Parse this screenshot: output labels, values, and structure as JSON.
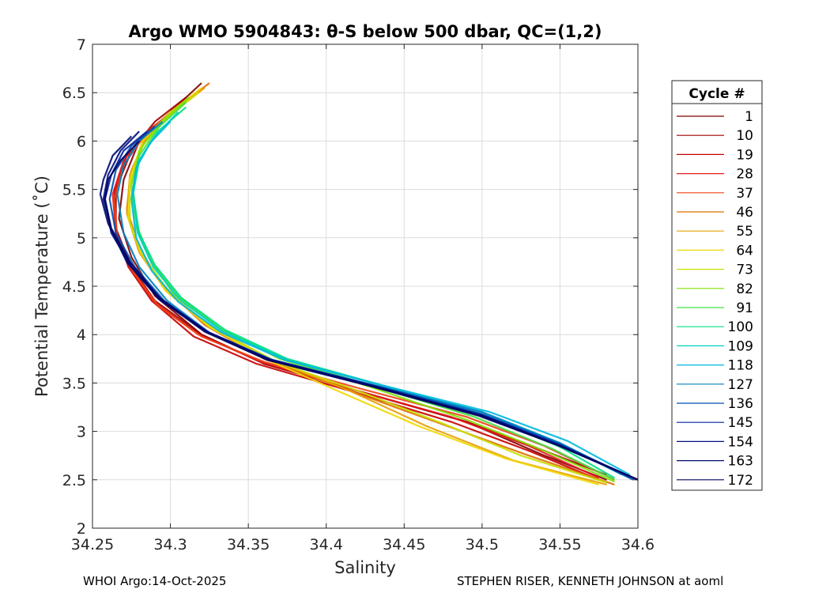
{
  "chart_data": {
    "type": "line",
    "title": "Argo WMO 5904843: θ-S below 500 dbar,  QC=(1,2)",
    "xlabel": "Salinity",
    "ylabel": "Potential Temperature (˚C)",
    "xlim": [
      34.25,
      34.6
    ],
    "ylim": [
      2,
      7
    ],
    "xticks": [
      "34.25",
      "34.3",
      "34.35",
      "34.4",
      "34.45",
      "34.5",
      "34.55",
      "34.6"
    ],
    "yticks": [
      "2",
      "2.5",
      "3",
      "3.5",
      "4",
      "4.5",
      "5",
      "5.5",
      "6",
      "6.5",
      "7"
    ],
    "grid": true,
    "legend": {
      "title": "Cycle #",
      "placement": "right outside",
      "entries": [
        "1",
        "10",
        "19",
        "28",
        "37",
        "46",
        "55",
        "64",
        "73",
        "82",
        "91",
        "100",
        "109",
        "118",
        "127",
        "136",
        "145",
        "154",
        "163",
        "172"
      ],
      "colors": [
        "#7f0000",
        "#a00000",
        "#c80000",
        "#e41a1c",
        "#f04010",
        "#e07000",
        "#e6a000",
        "#f0d800",
        "#c8e000",
        "#80e000",
        "#40e040",
        "#00e080",
        "#00d0c0",
        "#00b8e0",
        "#0080c0",
        "#0050b0",
        "#0020a0",
        "#001080",
        "#000a70",
        "#000060"
      ]
    },
    "series": [
      {
        "name": "1",
        "points": [
          [
            34.32,
            6.6
          ],
          [
            34.3,
            6.3
          ],
          [
            34.28,
            6.0
          ],
          [
            34.27,
            5.6
          ],
          [
            34.267,
            5.2
          ],
          [
            34.275,
            4.8
          ],
          [
            34.29,
            4.4
          ],
          [
            34.32,
            4.0
          ],
          [
            34.36,
            3.7
          ],
          [
            34.42,
            3.42
          ],
          [
            34.49,
            3.1
          ],
          [
            34.54,
            2.75
          ],
          [
            34.58,
            2.5
          ]
        ]
      },
      {
        "name": "10",
        "points": [
          [
            34.31,
            6.45
          ],
          [
            34.29,
            6.2
          ],
          [
            34.275,
            5.9
          ],
          [
            34.265,
            5.5
          ],
          [
            34.265,
            5.1
          ],
          [
            34.275,
            4.7
          ],
          [
            34.29,
            4.35
          ],
          [
            34.32,
            4.0
          ],
          [
            34.36,
            3.7
          ],
          [
            34.42,
            3.42
          ],
          [
            34.49,
            3.1
          ],
          [
            34.54,
            2.8
          ],
          [
            34.58,
            2.55
          ]
        ]
      },
      {
        "name": "19",
        "points": [
          [
            34.31,
            6.4
          ],
          [
            34.29,
            6.15
          ],
          [
            34.272,
            5.85
          ],
          [
            34.264,
            5.5
          ],
          [
            34.265,
            5.1
          ],
          [
            34.273,
            4.7
          ],
          [
            34.288,
            4.35
          ],
          [
            34.315,
            3.98
          ],
          [
            34.355,
            3.7
          ],
          [
            34.415,
            3.42
          ],
          [
            34.48,
            3.1
          ],
          [
            34.53,
            2.8
          ],
          [
            34.575,
            2.5
          ]
        ]
      },
      {
        "name": "28",
        "points": [
          [
            34.305,
            6.35
          ],
          [
            34.285,
            6.1
          ],
          [
            34.27,
            5.8
          ],
          [
            34.263,
            5.45
          ],
          [
            34.265,
            5.05
          ],
          [
            34.274,
            4.7
          ],
          [
            34.29,
            4.33
          ],
          [
            34.318,
            4.0
          ],
          [
            34.358,
            3.72
          ],
          [
            34.415,
            3.44
          ],
          [
            34.48,
            3.15
          ],
          [
            34.53,
            2.85
          ],
          [
            34.575,
            2.52
          ]
        ]
      },
      {
        "name": "37",
        "points": [
          [
            34.3,
            6.3
          ],
          [
            34.283,
            6.05
          ],
          [
            34.27,
            5.75
          ],
          [
            34.264,
            5.4
          ],
          [
            34.266,
            5.0
          ],
          [
            34.276,
            4.65
          ],
          [
            34.292,
            4.3
          ],
          [
            34.32,
            3.98
          ],
          [
            34.36,
            3.72
          ],
          [
            34.42,
            3.45
          ],
          [
            34.49,
            3.15
          ],
          [
            34.54,
            2.85
          ],
          [
            34.585,
            2.5
          ]
        ]
      },
      {
        "name": "46",
        "points": [
          [
            34.325,
            6.6
          ],
          [
            34.305,
            6.35
          ],
          [
            34.285,
            6.05
          ],
          [
            34.275,
            5.7
          ],
          [
            34.272,
            5.3
          ],
          [
            34.28,
            4.9
          ],
          [
            34.295,
            4.5
          ],
          [
            34.322,
            4.1
          ],
          [
            34.36,
            3.75
          ],
          [
            34.41,
            3.45
          ],
          [
            34.47,
            3.1
          ],
          [
            34.53,
            2.75
          ],
          [
            34.585,
            2.45
          ]
        ]
      },
      {
        "name": "55",
        "points": [
          [
            34.322,
            6.55
          ],
          [
            34.302,
            6.3
          ],
          [
            34.283,
            6.0
          ],
          [
            34.274,
            5.65
          ],
          [
            34.272,
            5.25
          ],
          [
            34.28,
            4.85
          ],
          [
            34.296,
            4.48
          ],
          [
            34.324,
            4.1
          ],
          [
            34.365,
            3.74
          ],
          [
            34.415,
            3.42
          ],
          [
            34.465,
            3.05
          ],
          [
            34.52,
            2.7
          ],
          [
            34.58,
            2.45
          ]
        ]
      },
      {
        "name": "64",
        "points": [
          [
            34.32,
            6.55
          ],
          [
            34.3,
            6.3
          ],
          [
            34.282,
            6.0
          ],
          [
            34.274,
            5.6
          ],
          [
            34.273,
            5.2
          ],
          [
            34.281,
            4.85
          ],
          [
            34.297,
            4.45
          ],
          [
            34.325,
            4.08
          ],
          [
            34.365,
            3.72
          ],
          [
            34.41,
            3.4
          ],
          [
            34.46,
            3.05
          ],
          [
            34.515,
            2.72
          ],
          [
            34.575,
            2.45
          ]
        ]
      },
      {
        "name": "73",
        "points": [
          [
            34.318,
            6.5
          ],
          [
            34.298,
            6.25
          ],
          [
            34.282,
            5.95
          ],
          [
            34.274,
            5.55
          ],
          [
            34.274,
            5.15
          ],
          [
            34.283,
            4.8
          ],
          [
            34.3,
            4.42
          ],
          [
            34.328,
            4.06
          ],
          [
            34.368,
            3.72
          ],
          [
            34.42,
            3.42
          ],
          [
            34.475,
            3.08
          ],
          [
            34.525,
            2.75
          ],
          [
            34.58,
            2.47
          ]
        ]
      },
      {
        "name": "82",
        "points": [
          [
            34.312,
            6.45
          ],
          [
            34.294,
            6.2
          ],
          [
            34.28,
            5.9
          ],
          [
            34.275,
            5.55
          ],
          [
            34.277,
            5.15
          ],
          [
            34.286,
            4.8
          ],
          [
            34.302,
            4.42
          ],
          [
            34.33,
            4.08
          ],
          [
            34.37,
            3.75
          ],
          [
            34.43,
            3.45
          ],
          [
            34.49,
            3.12
          ],
          [
            34.54,
            2.8
          ],
          [
            34.585,
            2.48
          ]
        ]
      },
      {
        "name": "91",
        "points": [
          [
            34.31,
            6.4
          ],
          [
            34.293,
            6.15
          ],
          [
            34.28,
            5.85
          ],
          [
            34.276,
            5.5
          ],
          [
            34.279,
            5.1
          ],
          [
            34.288,
            4.75
          ],
          [
            34.305,
            4.4
          ],
          [
            34.333,
            4.05
          ],
          [
            34.372,
            3.75
          ],
          [
            34.43,
            3.47
          ],
          [
            34.495,
            3.15
          ],
          [
            34.545,
            2.82
          ],
          [
            34.585,
            2.5
          ]
        ]
      },
      {
        "name": "100",
        "points": [
          [
            34.31,
            6.35
          ],
          [
            34.292,
            6.1
          ],
          [
            34.28,
            5.8
          ],
          [
            34.276,
            5.45
          ],
          [
            34.28,
            5.05
          ],
          [
            34.29,
            4.72
          ],
          [
            34.307,
            4.38
          ],
          [
            34.335,
            4.05
          ],
          [
            34.375,
            3.75
          ],
          [
            34.435,
            3.48
          ],
          [
            34.5,
            3.17
          ],
          [
            34.55,
            2.84
          ],
          [
            34.585,
            2.52
          ]
        ]
      },
      {
        "name": "109",
        "points": [
          [
            34.305,
            6.3
          ],
          [
            34.29,
            6.05
          ],
          [
            34.279,
            5.78
          ],
          [
            34.276,
            5.45
          ],
          [
            34.279,
            5.05
          ],
          [
            34.289,
            4.7
          ],
          [
            34.306,
            4.36
          ],
          [
            34.334,
            4.03
          ],
          [
            34.375,
            3.74
          ],
          [
            34.435,
            3.48
          ],
          [
            34.5,
            3.2
          ],
          [
            34.55,
            2.88
          ],
          [
            34.59,
            2.55
          ]
        ]
      },
      {
        "name": "118",
        "points": [
          [
            34.3,
            6.2
          ],
          [
            34.287,
            5.98
          ],
          [
            34.278,
            5.72
          ],
          [
            34.275,
            5.4
          ],
          [
            34.278,
            5.0
          ],
          [
            34.288,
            4.66
          ],
          [
            34.305,
            4.34
          ],
          [
            34.333,
            4.02
          ],
          [
            34.373,
            3.74
          ],
          [
            34.435,
            3.48
          ],
          [
            34.505,
            3.2
          ],
          [
            34.555,
            2.9
          ],
          [
            34.595,
            2.55
          ]
        ]
      },
      {
        "name": "127",
        "points": [
          [
            34.295,
            6.2
          ],
          [
            34.28,
            6.0
          ],
          [
            34.27,
            5.75
          ],
          [
            34.266,
            5.45
          ],
          [
            34.27,
            5.05
          ],
          [
            34.28,
            4.7
          ],
          [
            34.298,
            4.35
          ],
          [
            34.325,
            4.02
          ],
          [
            34.365,
            3.74
          ],
          [
            34.43,
            3.48
          ],
          [
            34.5,
            3.2
          ],
          [
            34.55,
            2.88
          ],
          [
            34.595,
            2.52
          ]
        ]
      },
      {
        "name": "136",
        "points": [
          [
            34.29,
            6.15
          ],
          [
            34.275,
            5.95
          ],
          [
            34.265,
            5.7
          ],
          [
            34.261,
            5.4
          ],
          [
            34.265,
            5.05
          ],
          [
            34.277,
            4.7
          ],
          [
            34.296,
            4.35
          ],
          [
            34.325,
            4.02
          ],
          [
            34.365,
            3.74
          ],
          [
            34.43,
            3.48
          ],
          [
            34.5,
            3.18
          ],
          [
            34.55,
            2.87
          ],
          [
            34.597,
            2.5
          ]
        ]
      },
      {
        "name": "145",
        "points": [
          [
            34.285,
            6.1
          ],
          [
            34.27,
            5.9
          ],
          [
            34.262,
            5.65
          ],
          [
            34.258,
            5.4
          ],
          [
            34.262,
            5.05
          ],
          [
            34.275,
            4.7
          ],
          [
            34.295,
            4.35
          ],
          [
            34.325,
            4.02
          ],
          [
            34.365,
            3.74
          ],
          [
            34.43,
            3.47
          ],
          [
            34.5,
            3.17
          ],
          [
            34.55,
            2.86
          ],
          [
            34.6,
            2.5
          ]
        ]
      },
      {
        "name": "154",
        "points": [
          [
            34.28,
            6.1
          ],
          [
            34.268,
            5.9
          ],
          [
            34.26,
            5.65
          ],
          [
            34.257,
            5.4
          ],
          [
            34.262,
            5.08
          ],
          [
            34.274,
            4.72
          ],
          [
            34.293,
            4.36
          ],
          [
            34.323,
            4.03
          ],
          [
            34.362,
            3.74
          ],
          [
            34.428,
            3.47
          ],
          [
            34.498,
            3.17
          ],
          [
            34.548,
            2.86
          ],
          [
            34.6,
            2.5
          ]
        ]
      },
      {
        "name": "163",
        "points": [
          [
            34.275,
            6.05
          ],
          [
            34.263,
            5.85
          ],
          [
            34.257,
            5.6
          ],
          [
            34.255,
            5.45
          ],
          [
            34.26,
            5.15
          ],
          [
            34.272,
            4.75
          ],
          [
            34.292,
            4.38
          ],
          [
            34.322,
            4.03
          ],
          [
            34.362,
            3.74
          ],
          [
            34.428,
            3.47
          ],
          [
            34.498,
            3.16
          ],
          [
            34.55,
            2.85
          ],
          [
            34.6,
            2.5
          ]
        ]
      },
      {
        "name": "172",
        "points": [
          [
            34.28,
            6.0
          ],
          [
            34.268,
            5.8
          ],
          [
            34.26,
            5.6
          ],
          [
            34.258,
            5.4
          ],
          [
            34.262,
            5.1
          ],
          [
            34.274,
            4.75
          ],
          [
            34.293,
            4.38
          ],
          [
            34.323,
            4.03
          ],
          [
            34.363,
            3.74
          ],
          [
            34.43,
            3.47
          ],
          [
            34.5,
            3.16
          ],
          [
            34.55,
            2.85
          ],
          [
            34.6,
            2.5
          ]
        ]
      }
    ]
  },
  "footer": {
    "left": "WHOI Argo:14-Oct-2025",
    "right": "STEPHEN RISER, KENNETH JOHNSON at aoml"
  }
}
